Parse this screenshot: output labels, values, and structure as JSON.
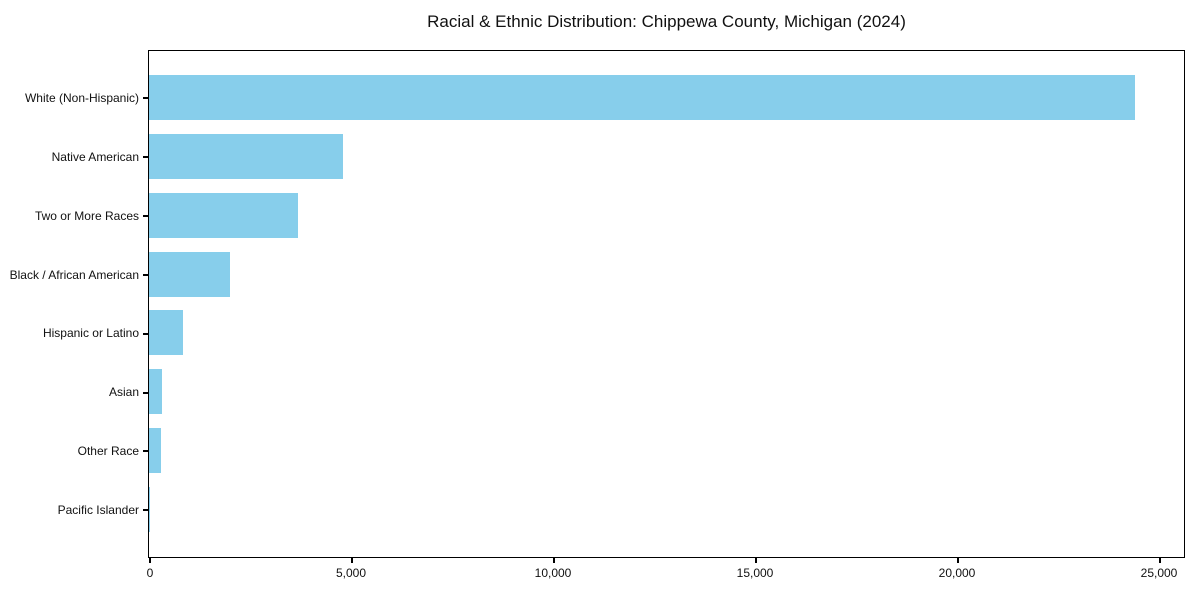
{
  "chart_data": {
    "type": "bar",
    "orientation": "horizontal",
    "title": "Racial & Ethnic Distribution: Chippewa County, Michigan (2024)",
    "categories": [
      "White (Non-Hispanic)",
      "Native American",
      "Two or More Races",
      "Black / African American",
      "Hispanic or Latino",
      "Asian",
      "Other Race",
      "Pacific Islander"
    ],
    "values": [
      24400,
      4800,
      3700,
      2000,
      850,
      330,
      300,
      20
    ],
    "xlabel": "",
    "ylabel": "",
    "xlim": [
      0,
      25600
    ],
    "xticks": [
      {
        "value": 0,
        "label": "0"
      },
      {
        "value": 5000,
        "label": "5,000"
      },
      {
        "value": 10000,
        "label": "10,000"
      },
      {
        "value": 15000,
        "label": "15,000"
      },
      {
        "value": 20000,
        "label": "20,000"
      },
      {
        "value": 25000,
        "label": "25,000"
      }
    ],
    "grid": false,
    "legend": null,
    "colors": {
      "bar": "#87ceeb",
      "axis": "#000000",
      "text": "#111111",
      "background": "#ffffff"
    }
  }
}
